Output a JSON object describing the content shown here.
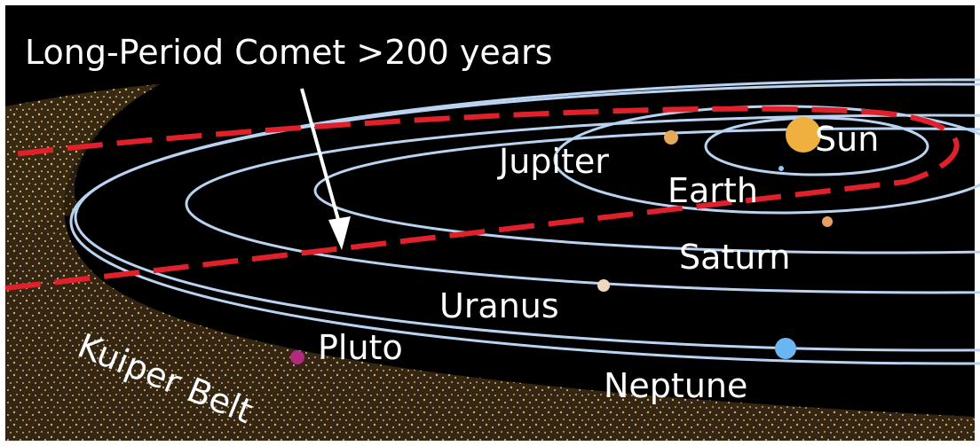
{
  "title": "Long-Period Comet >200 years",
  "labels": {
    "sun": "Sun",
    "jupiter": "Jupiter",
    "earth": "Earth",
    "saturn": "Saturn",
    "uranus": "Uranus",
    "pluto": "Pluto",
    "neptune": "Neptune",
    "kuiper_belt": "Kuiper Belt"
  }
}
